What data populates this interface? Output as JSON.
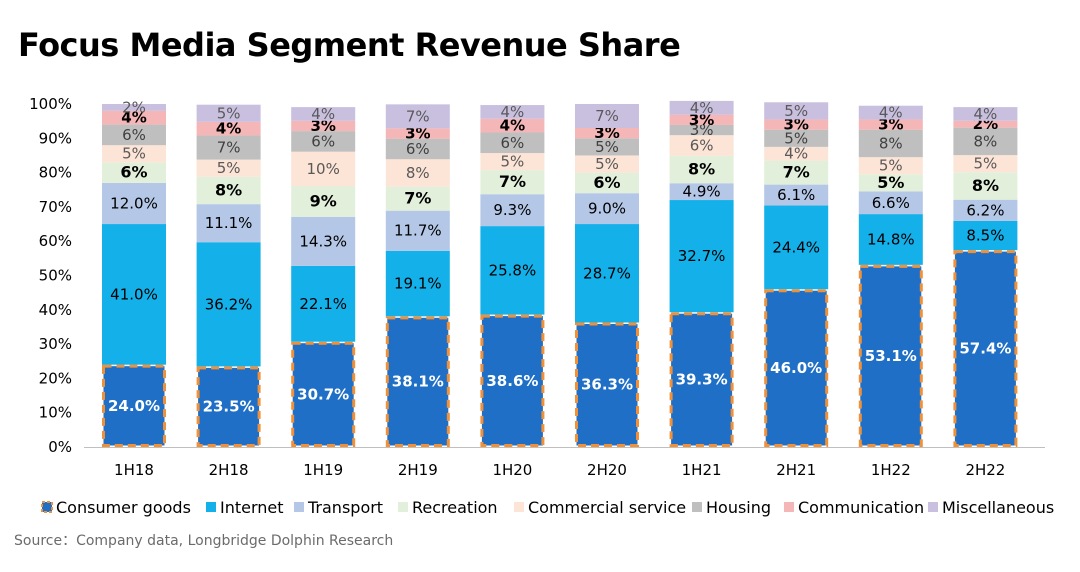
{
  "chart_data": {
    "type": "bar",
    "stacked": true,
    "title": "Focus Media Segment Revenue Share",
    "source": "Source：Company data, Longbridge Dolphin Research",
    "categories": [
      "1H18",
      "2H18",
      "1H19",
      "2H19",
      "1H20",
      "2H20",
      "1H21",
      "2H21",
      "1H22",
      "2H22"
    ],
    "ylim": [
      0,
      100
    ],
    "yticks": [
      "0%",
      "10%",
      "20%",
      "30%",
      "40%",
      "50%",
      "60%",
      "70%",
      "80%",
      "90%",
      "100%"
    ],
    "legend_position": "bottom",
    "grid": false,
    "series": [
      {
        "name": "Consumer goods",
        "color": "#1f6fc6",
        "border": "#f0913a",
        "values": [
          24.0,
          23.5,
          30.7,
          38.1,
          38.6,
          36.3,
          39.3,
          46.0,
          53.1,
          57.4
        ],
        "labels": [
          "24.0%",
          "23.5%",
          "30.7%",
          "38.1%",
          "38.6%",
          "36.3%",
          "39.3%",
          "46.0%",
          "53.1%",
          "57.4%"
        ]
      },
      {
        "name": "Internet",
        "color": "#14b0ea",
        "values": [
          41.0,
          36.2,
          22.1,
          19.1,
          25.8,
          28.7,
          32.7,
          24.4,
          14.8,
          8.5
        ],
        "labels": [
          "41.0%",
          "36.2%",
          "22.1%",
          "19.1%",
          "25.8%",
          "28.7%",
          "32.7%",
          "24.4%",
          "14.8%",
          "8.5%"
        ]
      },
      {
        "name": "Transport",
        "color": "#b4c7e7",
        "values": [
          12.0,
          11.1,
          14.3,
          11.7,
          9.3,
          9.0,
          4.9,
          6.1,
          6.6,
          6.2
        ],
        "labels": [
          "12.0%",
          "11.1%",
          "14.3%",
          "11.7%",
          "9.3%",
          "9.0%",
          "4.9%",
          "6.1%",
          "6.6%",
          "6.2%"
        ]
      },
      {
        "name": "Recreation",
        "color": "#e2efda",
        "values": [
          6,
          8,
          9,
          7,
          7,
          6,
          8,
          7,
          5,
          8
        ],
        "labels": [
          "6%",
          "8%",
          "9%",
          "7%",
          "7%",
          "6%",
          "8%",
          "7%",
          "5%",
          "8%"
        ]
      },
      {
        "name": "Commercial service",
        "color": "#fce4d6",
        "values": [
          5,
          5,
          10,
          8,
          5,
          5,
          6,
          4,
          5,
          5
        ],
        "labels": [
          "5%",
          "5%",
          "10%",
          "8%",
          "5%",
          "5%",
          "6%",
          "4%",
          "5%",
          "5%"
        ]
      },
      {
        "name": "Housing",
        "color": "#bfbfbf",
        "values": [
          6,
          7,
          6,
          6,
          6,
          5,
          3,
          5,
          8,
          8
        ],
        "labels": [
          "6%",
          "7%",
          "6%",
          "6%",
          "6%",
          "5%",
          "3%",
          "5%",
          "8%",
          "8%"
        ]
      },
      {
        "name": "Communication",
        "color": "#f4b6b6",
        "values": [
          4,
          4,
          3,
          3,
          4,
          3,
          3,
          3,
          3,
          2
        ],
        "labels": [
          "4%",
          "4%",
          "3%",
          "3%",
          "4%",
          "3%",
          "3%",
          "3%",
          "3%",
          "2%"
        ]
      },
      {
        "name": "Miscellaneous",
        "color": "#c9c0e0",
        "values": [
          2,
          5,
          4,
          7,
          4,
          7,
          4,
          5,
          4,
          4
        ],
        "labels": [
          "2%",
          "5%",
          "4%",
          "7%",
          "4%",
          "7%",
          "4%",
          "5%",
          "4%",
          "4%"
        ]
      }
    ]
  }
}
